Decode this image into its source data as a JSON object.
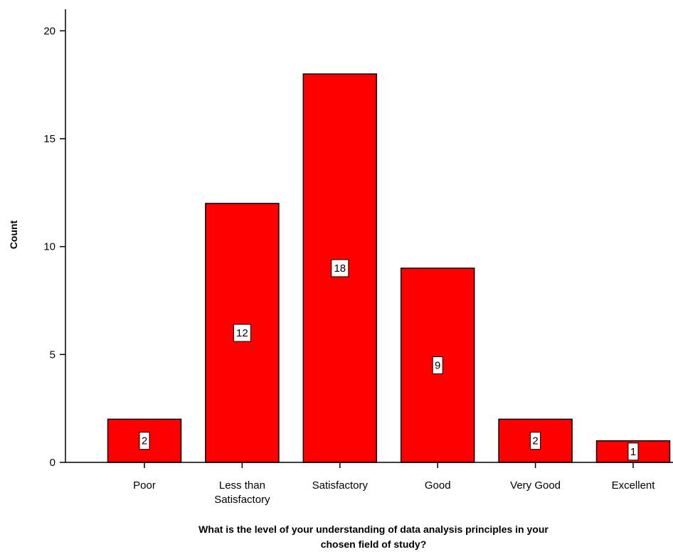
{
  "chart_data": {
    "type": "bar",
    "categories": [
      [
        "Poor"
      ],
      [
        "Less than",
        "Satisfactory"
      ],
      [
        "Satisfactory"
      ],
      [
        "Good"
      ],
      [
        "Very Good"
      ],
      [
        "Excellent"
      ]
    ],
    "values": [
      2,
      12,
      18,
      9,
      2,
      1
    ],
    "data_labels": [
      "2",
      "12",
      "18",
      "9",
      "2",
      "1"
    ],
    "xlabel": [
      "What is the level of your understanding of data analysis principles in your",
      "chosen field of study?"
    ],
    "ylabel": "Count",
    "ylim": [
      0,
      21
    ],
    "yticks": [
      0,
      5,
      10,
      15,
      20
    ],
    "ytick_labels": [
      "0",
      "5",
      "10",
      "15",
      "20"
    ],
    "bar_color": "#ff0000",
    "grid": false,
    "legend": "none"
  }
}
